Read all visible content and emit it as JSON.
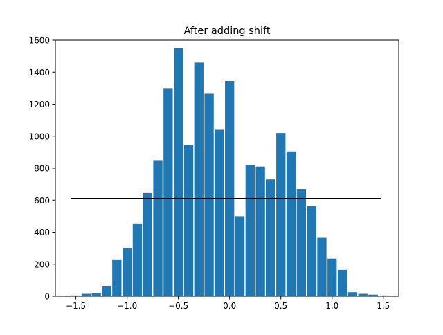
{
  "chart_data": {
    "type": "bar",
    "title": "After adding shift",
    "xlabel": "",
    "ylabel": "",
    "xlim": [
      -1.7,
      1.65
    ],
    "ylim": [
      0,
      1600
    ],
    "xticks": [
      -1.5,
      -1.0,
      -0.5,
      0.0,
      0.5,
      1.0,
      1.5
    ],
    "xtick_labels": [
      "−1.5",
      "−1.0",
      "−0.5",
      "0.0",
      "0.5",
      "1.0",
      "1.5"
    ],
    "yticks": [
      0,
      200,
      400,
      600,
      800,
      1000,
      1200,
      1400,
      1600
    ],
    "ytick_labels": [
      "0",
      "200",
      "400",
      "600",
      "800",
      "1000",
      "1200",
      "1400",
      "1600"
    ],
    "bar_width": 0.09,
    "bar_color": "#1f77b4",
    "x": [
      -1.5,
      -1.4,
      -1.3,
      -1.2,
      -1.1,
      -1.0,
      -0.9,
      -0.8,
      -0.7,
      -0.6,
      -0.5,
      -0.4,
      -0.3,
      -0.2,
      -0.1,
      0.0,
      0.1,
      0.2,
      0.3,
      0.4,
      0.5,
      0.6,
      0.7,
      0.8,
      0.9,
      1.0,
      1.1,
      1.2,
      1.3,
      1.4,
      1.5
    ],
    "values": [
      5,
      15,
      20,
      65,
      230,
      300,
      455,
      645,
      850,
      1300,
      1550,
      945,
      1460,
      1265,
      1040,
      1345,
      500,
      820,
      810,
      730,
      1020,
      905,
      670,
      565,
      365,
      235,
      165,
      25,
      15,
      10,
      5
    ],
    "reference_line": {
      "y": 610,
      "x_start": -1.55,
      "x_end": 1.48,
      "color": "#000000"
    },
    "grid": false,
    "legend": false
  }
}
